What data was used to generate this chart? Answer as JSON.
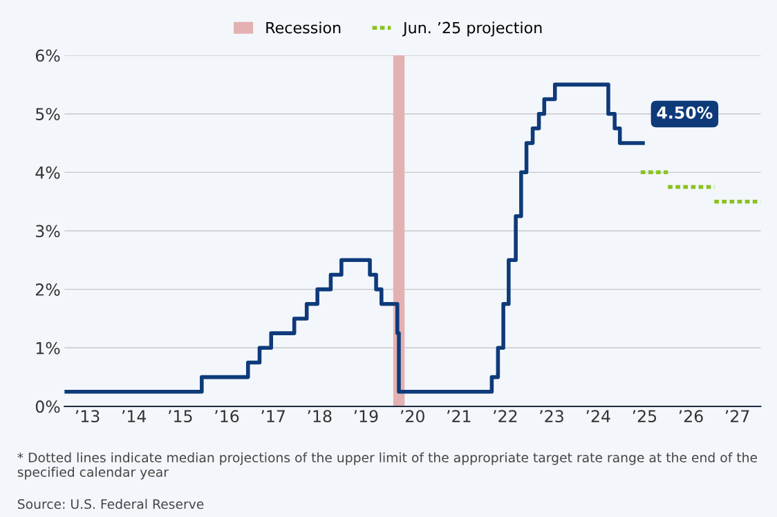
{
  "chart_data": {
    "type": "step",
    "series": [
      {
        "color": "#0e3a7a",
        "values": [
          0.25,
          0.5,
          0.75,
          1.0,
          1.25,
          1.5,
          1.75,
          2.0,
          2.25,
          2.5,
          2.25,
          2.0,
          1.75,
          1.25,
          0.25,
          0.5,
          1.0,
          1.75,
          2.5,
          3.25,
          4.0,
          4.5,
          4.75,
          5.0,
          5.25,
          5.5,
          5.0,
          4.75,
          4.5,
          4.5
        ],
        "x": [
          "2013-01-01",
          "2015-12-17",
          "2016-12-15",
          "2017-03-16",
          "2017-06-15",
          "2017-12-14",
          "2018-03-22",
          "2018-06-14",
          "2018-09-27",
          "2018-12-20",
          "2019-08-01",
          "2019-09-19",
          "2019-10-31",
          "2020-03-04",
          "2020-03-16",
          "2022-03-17",
          "2022-05-05",
          "2022-06-16",
          "2022-07-28",
          "2022-09-22",
          "2022-11-03",
          "2022-12-15",
          "2023-02-02",
          "2023-03-23",
          "2023-05-04",
          "2023-07-27",
          "2024-09-19",
          "2024-11-08",
          "2024-12-19",
          "2025-06-18"
        ]
      },
      {
        "type": "line",
        "name": "Jun. ’25 projection",
        "color": "#8cc21e",
        "line_style": "dotted",
        "x": [
          "2025-06-01",
          "2026-01-01"
        ],
        "values": [
          4.0,
          4.0
        ]
      },
      {
        "type": "line",
        "color": "#8cc21e",
        "line_style": "dotted",
        "x": [
          "2026-01-01",
          "2027-01-01"
        ],
        "values": [
          3.75,
          3.75
        ]
      },
      {
        "type": "line",
        "color": "#8cc21e",
        "line_style": "dotted",
        "x": [
          "2027-01-01",
          "2028-01-01"
        ],
        "values": [
          3.5,
          3.5
        ]
      }
    ],
    "bands": [
      {
        "axis": "x",
        "from": "2020-02-01",
        "to": "2020-04-30",
        "label": "Recession",
        "color": "#e3b1b1"
      }
    ],
    "xlim": [
      "2013-01-01",
      "2028-01-01"
    ],
    "xticks": [
      {
        "value": "2013-07-01",
        "label": "’13"
      },
      {
        "value": "2014-07-01",
        "label": "’14"
      },
      {
        "value": "2015-07-01",
        "label": "’15"
      },
      {
        "value": "2016-07-01",
        "label": "’16"
      },
      {
        "value": "2017-07-01",
        "label": "’17"
      },
      {
        "value": "2018-07-01",
        "label": "’18"
      },
      {
        "value": "2019-07-01",
        "label": "’19"
      },
      {
        "value": "2020-07-01",
        "label": "’20"
      },
      {
        "value": "2021-07-01",
        "label": "’21"
      },
      {
        "value": "2022-07-01",
        "label": "’22"
      },
      {
        "value": "2023-07-01",
        "label": "’23"
      },
      {
        "value": "2024-07-01",
        "label": "’24"
      },
      {
        "value": "2025-07-01",
        "label": "’25"
      },
      {
        "value": "2026-07-01",
        "label": "’26"
      },
      {
        "value": "2027-07-01",
        "label": "’27"
      }
    ],
    "ylim": [
      0,
      6
    ],
    "yticks": [
      {
        "value": 0,
        "label": "0%"
      },
      {
        "value": 1,
        "label": "1%"
      },
      {
        "value": 2,
        "label": "2%"
      },
      {
        "value": 3,
        "label": "3%"
      },
      {
        "value": 4,
        "label": "4%"
      },
      {
        "value": 5,
        "label": "5%"
      },
      {
        "value": 6,
        "label": "6%"
      }
    ],
    "grid": "y",
    "legend": "top",
    "marker": "none",
    "annotations": [
      {
        "text": "4.50%",
        "x": "2025-06-18",
        "y": 4.5
      },
      "* Dotted lines indicate median projections of the upper limit of the appropriate target rate range at the end of the specified calendar year",
      "Source: U.S. Federal Reserve"
    ]
  }
}
